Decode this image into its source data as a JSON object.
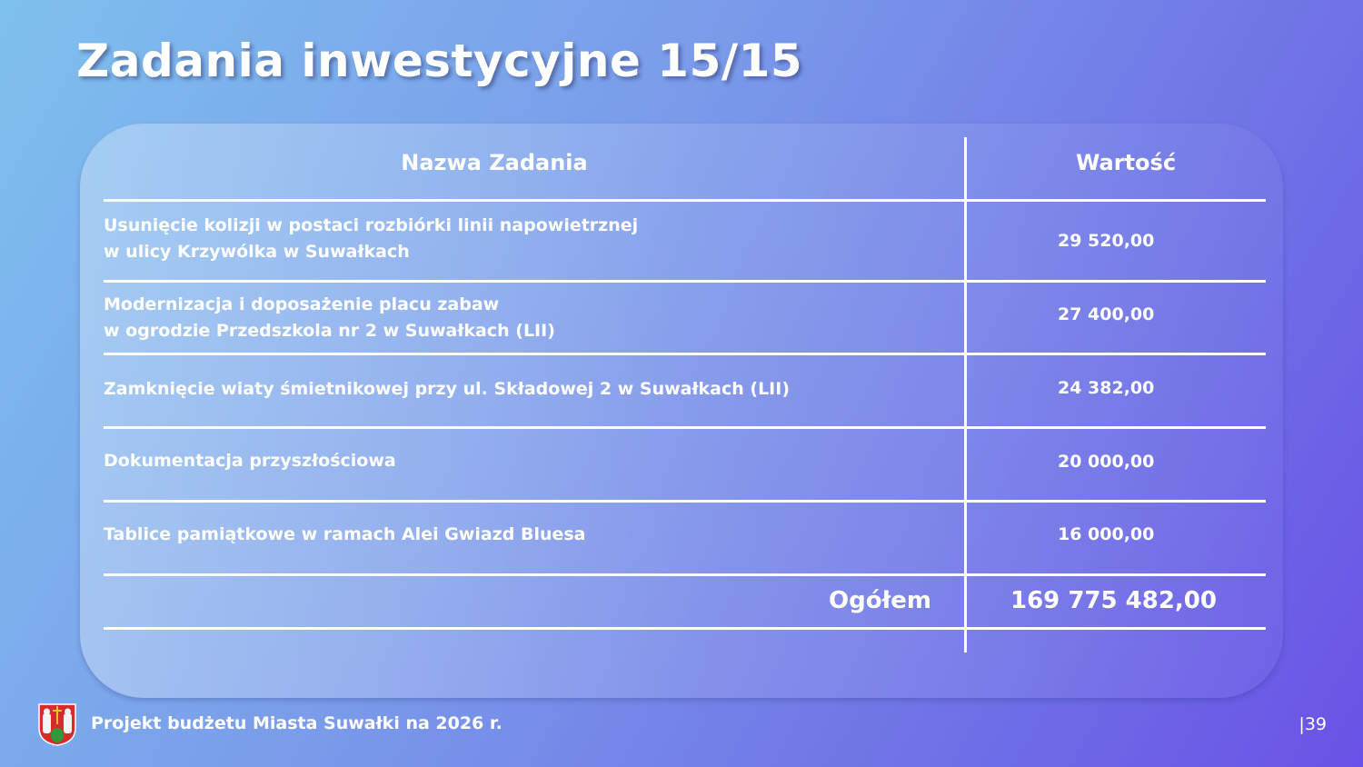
{
  "slide": {
    "title": "Zadania inwestycyjne 15/15"
  },
  "table": {
    "headers": [
      "Nazwa Zadania",
      "Wartość"
    ],
    "rows": [
      {
        "name_lines": [
          "Usunięcie kolizji w postaci rozbiórki linii napowietrznej",
          "w ulicy Krzywólka w Suwałkach"
        ],
        "value": "29 520,00"
      },
      {
        "name_lines": [
          "Modernizacja i doposażenie placu zabaw",
          "w ogrodzie Przedszkola nr 2 w Suwałkach (LII)"
        ],
        "value": "27 400,00"
      },
      {
        "name_lines": [
          "Zamknięcie wiaty śmietnikowej przy ul. Składowej 2 w Suwałkach (LII)"
        ],
        "value": "24 382,00"
      },
      {
        "name_lines": [
          "Dokumentacja przyszłościowa"
        ],
        "value": "20 000,00"
      },
      {
        "name_lines": [
          "Tablice pamiątkowe w ramach Alei Gwiazd Bluesa"
        ],
        "value": "16 000,00"
      }
    ],
    "total_label": "Ogółem",
    "total_value": "169 775 482,00"
  },
  "footer": {
    "text": "Projekt budżetu Miasta Suwałki na 2026 r.",
    "page": "|39",
    "logo": "Suwałki coat of arms"
  },
  "colors": {
    "bg_left": "#7ec0ee",
    "bg_right": "#6a52e6"
  }
}
